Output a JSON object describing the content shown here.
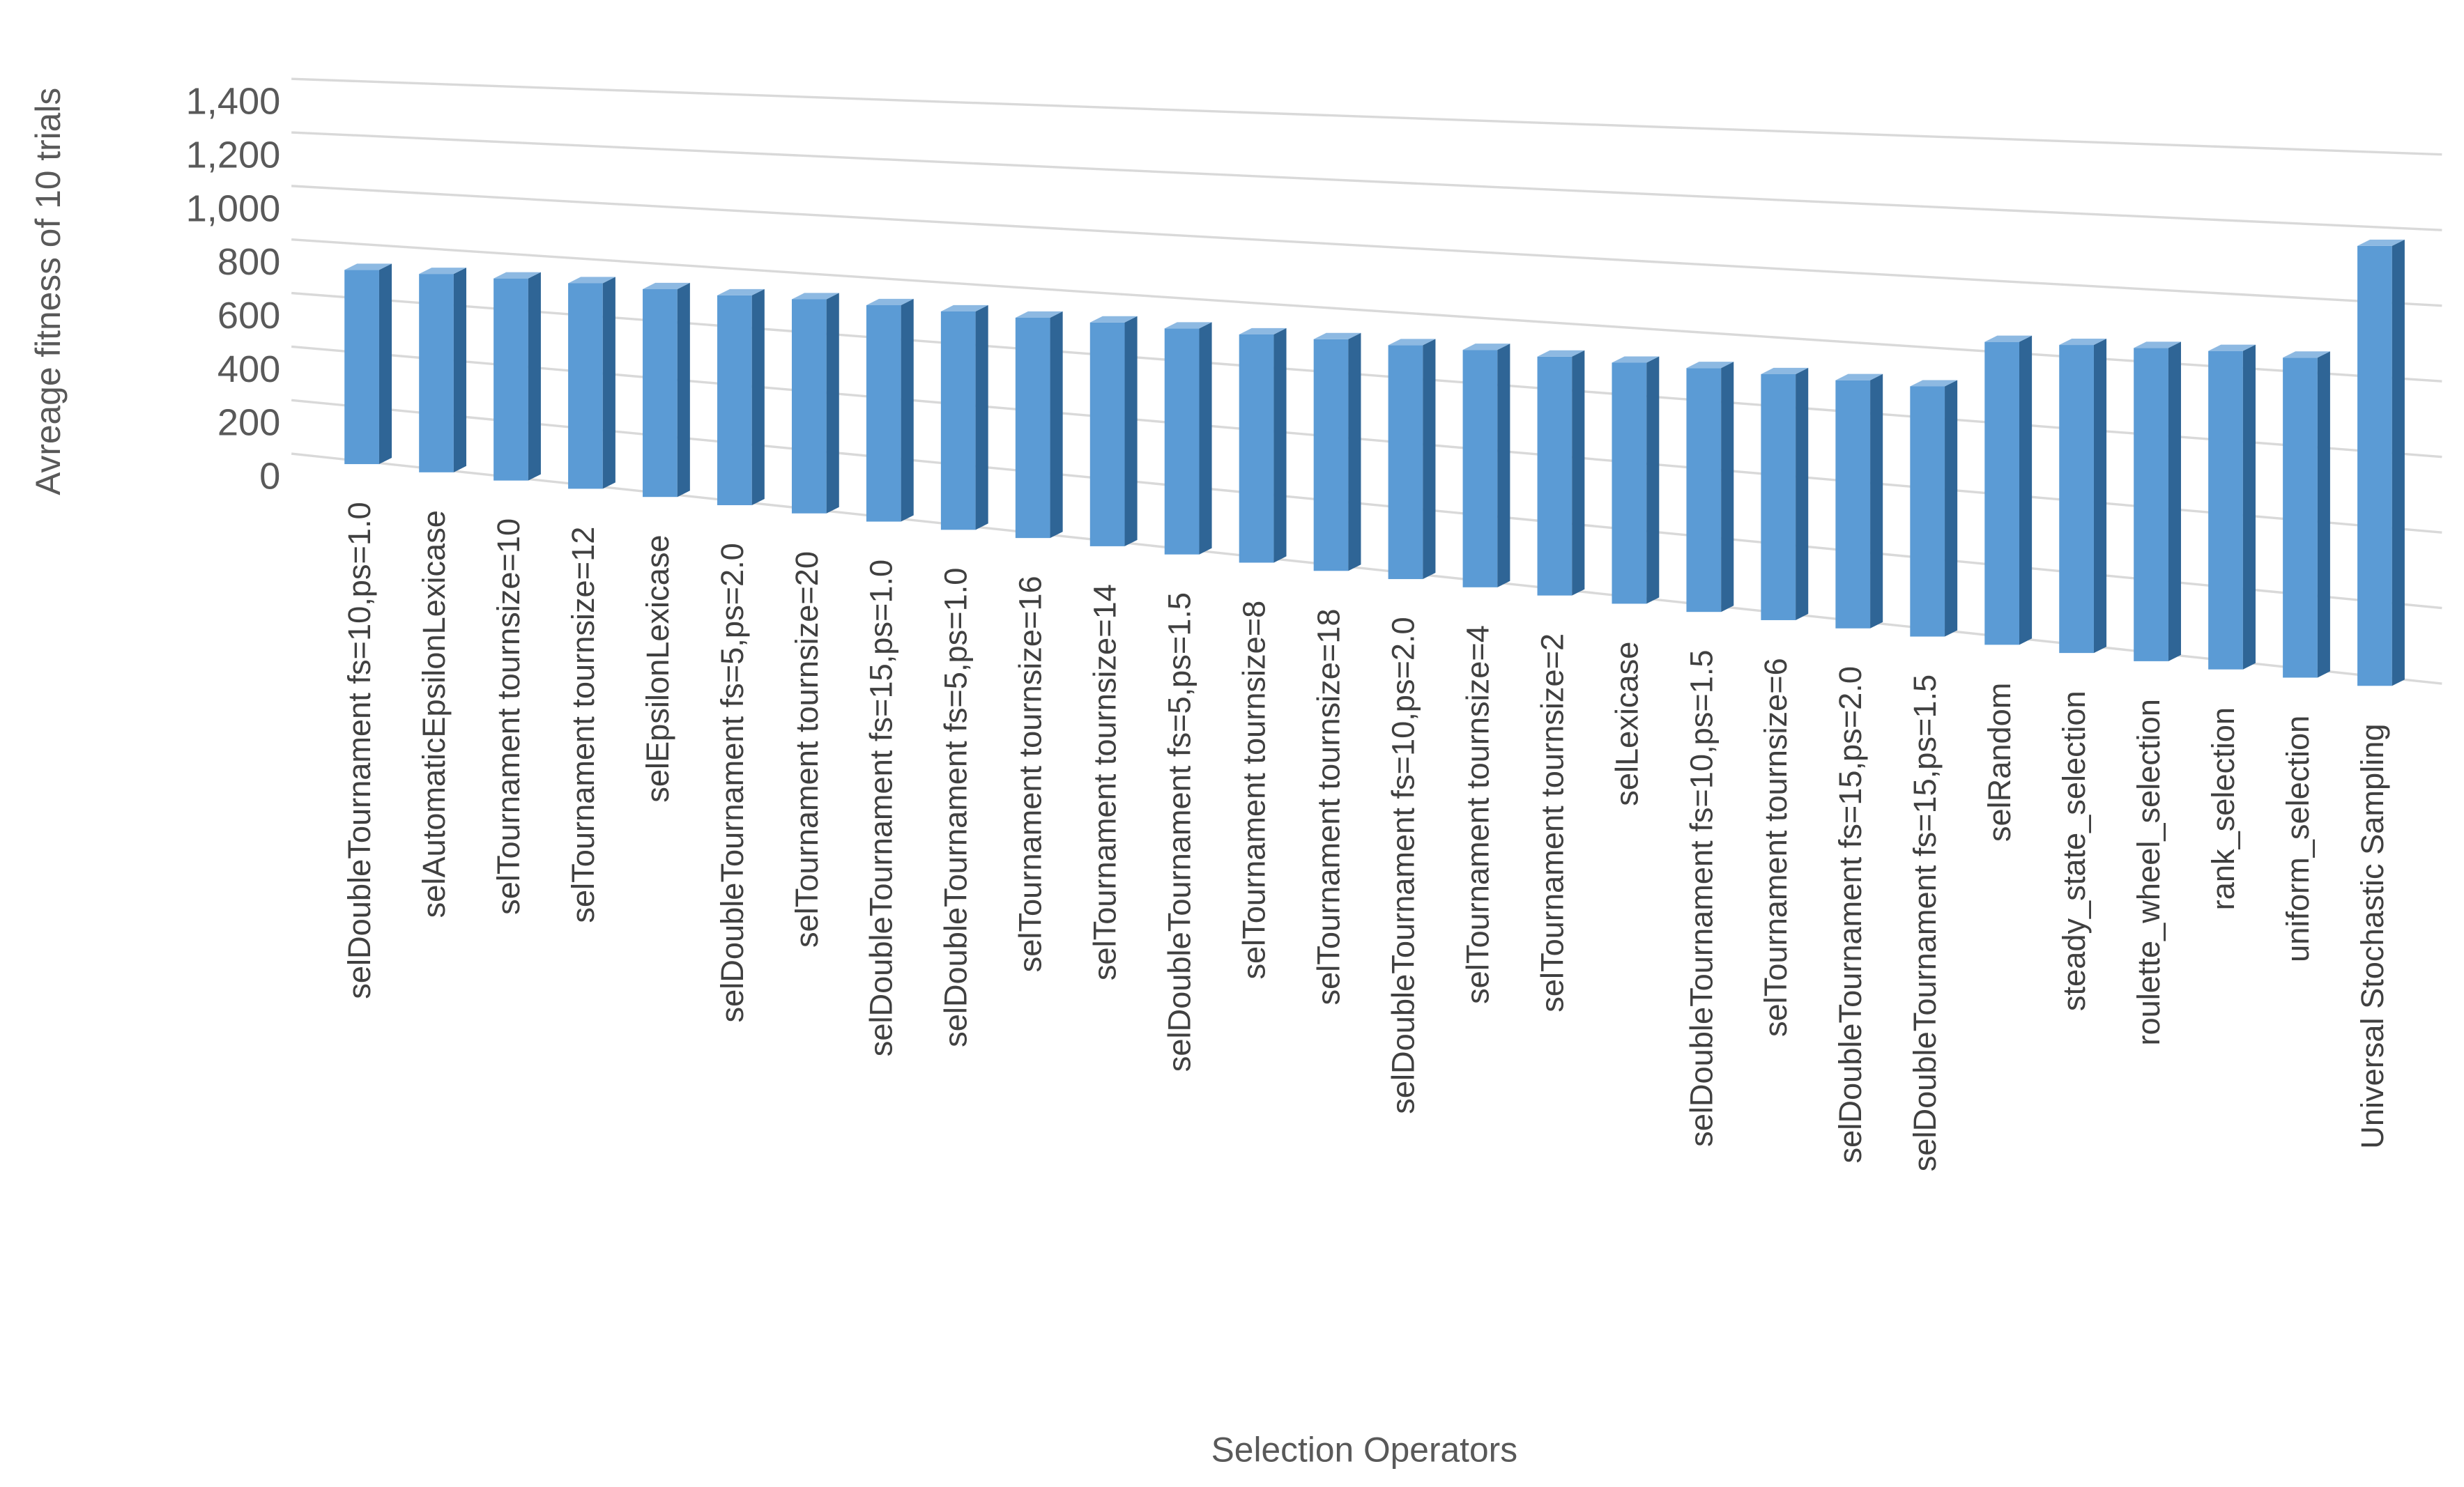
{
  "chart_data": {
    "type": "bar3d",
    "y_label": "Avreage fitness of 10 trials",
    "x_label": "Selection Operators",
    "categories": [
      "selDoubleTournament fs=10,ps=1.0",
      "selAutomaticEpsilonLexicase",
      "selTournament tournsize=10",
      "selTournament tournsize=12",
      "selEpsilonLexicase",
      "selDoubleTournament fs=5,ps=2.0",
      "selTournament tournsize=20",
      "selDoubleTournament fs=15,ps=1.0",
      "selDoubleTournament fs=5,ps=1.0",
      "selTournament tournsize=16",
      "selTournament tournsize=14",
      "selDoubleTournament fs=5,ps=1.5",
      "selTournament tournsize=8",
      "selTournament tournsize=18",
      "selDoubleTournament fs=10,ps=2.0",
      "selTournament tournsize=4",
      "selTournament tournsize=2",
      "selLexicase",
      "selDoubleTournament fs=10,ps=1.5",
      "selTournament tournsize=6",
      "selDoubleTournament fs=15,ps=2.0",
      "selDoubleTournament fs=15,ps=1.5",
      "selRandom",
      "steady_state_selection",
      "roulette_wheel_selection",
      "rank_selection",
      "uniform_selection",
      "Universal Stochastic Sampling"
    ],
    "values": [
      720,
      725,
      728,
      730,
      728,
      725,
      730,
      728,
      725,
      722,
      724,
      722,
      720,
      722,
      720,
      722,
      718,
      716,
      716,
      714,
      712,
      710,
      850,
      855,
      860,
      865,
      860,
      1170
    ],
    "color": "#5b9bd5",
    "ylim": [
      0,
      1400
    ],
    "yticks": [
      0,
      200,
      400,
      600,
      800,
      {
        "value": 1000,
        "label": "1,000"
      },
      {
        "value": 1200,
        "label": "1,200"
      },
      {
        "value": 1400,
        "label": "1,400"
      }
    ],
    "grid": true
  }
}
